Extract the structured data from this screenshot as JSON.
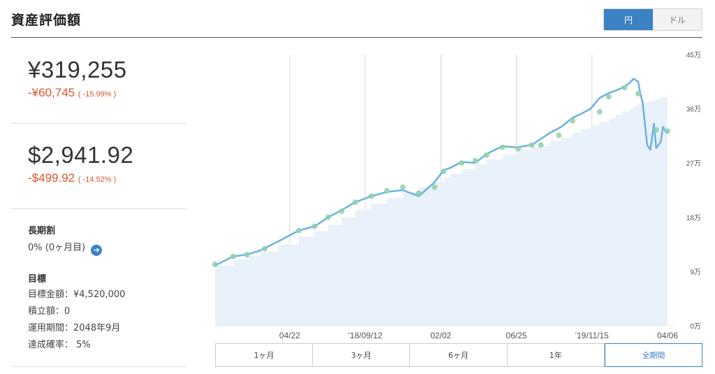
{
  "header": {
    "title": "資産評価額",
    "currency_options": [
      "円",
      "ドル"
    ],
    "selected_currency": "円"
  },
  "summary": {
    "yen_value": "¥319,255",
    "yen_change": "-¥60,745",
    "yen_change_pct": "( -15.99% )",
    "usd_value": "$2,941.92",
    "usd_change": "-$499.92",
    "usd_change_pct": "( -14.52% )",
    "change_color": "#d9532b"
  },
  "long_term": {
    "label": "長期割",
    "value": "0% (0ヶ月目)",
    "arrow_icon": "arrow-right-icon"
  },
  "goal": {
    "label": "目標",
    "target_amount": "目標金額：¥4,520,000",
    "accumulation": "積立額：0",
    "period": "運用期間：2048年9月",
    "probability": "達成確率：  5%"
  },
  "chart_data": {
    "type": "line",
    "x_tick_labels": [
      "04/22",
      "'18/09/12",
      "02/02",
      "06/25",
      "'19/11/15",
      "04/06"
    ],
    "y_tick_labels": [
      "0万",
      "9万",
      "18万",
      "27万",
      "36万",
      "45万"
    ],
    "ylim": [
      0,
      450000
    ],
    "xlim": [
      0,
      1
    ],
    "series": [
      {
        "role": "valuation",
        "color": "#6bb1e3",
        "x": [
          0.0,
          0.04,
          0.07,
          0.1,
          0.14,
          0.185,
          0.22,
          0.25,
          0.28,
          0.31,
          0.345,
          0.38,
          0.415,
          0.45,
          0.485,
          0.505,
          0.52,
          0.545,
          0.575,
          0.6,
          0.635,
          0.665,
          0.7,
          0.74,
          0.765,
          0.79,
          0.81,
          0.83,
          0.85,
          0.87,
          0.885,
          0.9,
          0.915,
          0.925,
          0.935,
          0.94,
          0.945,
          0.95,
          0.955,
          0.962,
          0.97,
          0.975,
          0.985,
          0.99,
          0.995,
          1.0
        ],
        "y": [
          100000,
          115000,
          118000,
          125000,
          140000,
          158000,
          165000,
          180000,
          192000,
          205000,
          215000,
          222000,
          225000,
          215000,
          238000,
          258000,
          262000,
          272000,
          270000,
          285000,
          298000,
          296000,
          300000,
          320000,
          330000,
          345000,
          352000,
          360000,
          378000,
          386000,
          390000,
          395000,
          402000,
          410000,
          405000,
          385000,
          370000,
          335000,
          300000,
          292000,
          335000,
          295000,
          305000,
          330000,
          323000,
          320000
        ]
      },
      {
        "role": "invested",
        "color": "#e9f1fa",
        "x": [
          0.0,
          0.04,
          0.07,
          0.1,
          0.14,
          0.185,
          0.22,
          0.25,
          0.28,
          0.31,
          0.345,
          0.38,
          0.415,
          0.45,
          0.485,
          0.505,
          0.52,
          0.545,
          0.575,
          0.6,
          0.635,
          0.665,
          0.7,
          0.74,
          0.765,
          0.79,
          0.81,
          0.83,
          0.85,
          0.87,
          0.885,
          0.9,
          0.915,
          0.925,
          0.935,
          0.945,
          0.955,
          0.965,
          0.975,
          0.985,
          0.995,
          1.0
        ],
        "y": [
          100000,
          110000,
          116000,
          123000,
          135000,
          148000,
          157000,
          168000,
          180000,
          192000,
          203000,
          212000,
          222000,
          230000,
          238000,
          246000,
          252000,
          260000,
          268000,
          276000,
          284000,
          292000,
          298000,
          306000,
          312000,
          320000,
          326000,
          332000,
          338000,
          344000,
          350000,
          356000,
          360000,
          364000,
          368000,
          370000,
          372000,
          374000,
          376000,
          378000,
          380000,
          380000
        ]
      }
    ],
    "markers": {
      "color": "#8ed1a9",
      "x": [
        0.0,
        0.04,
        0.07,
        0.11,
        0.185,
        0.22,
        0.25,
        0.28,
        0.31,
        0.345,
        0.38,
        0.415,
        0.45,
        0.485,
        0.505,
        0.545,
        0.575,
        0.6,
        0.635,
        0.67,
        0.7,
        0.72,
        0.76,
        0.79,
        0.85,
        0.87,
        0.905,
        0.935,
        0.975,
        1.0
      ],
      "y": [
        102000,
        115000,
        118000,
        128000,
        158000,
        165000,
        180000,
        190000,
        205000,
        215000,
        224000,
        230000,
        220000,
        230000,
        256000,
        270000,
        274000,
        283000,
        296000,
        294000,
        300000,
        300000,
        316000,
        340000,
        355000,
        380000,
        395000,
        385000,
        325000,
        323000
      ]
    },
    "gridlines": "vertical at x ticks",
    "legend": "none"
  },
  "periods": {
    "options": [
      "1ヶ月",
      "3ヶ月",
      "6ヶ月",
      "1年",
      "全期間"
    ],
    "selected": "全期間"
  }
}
